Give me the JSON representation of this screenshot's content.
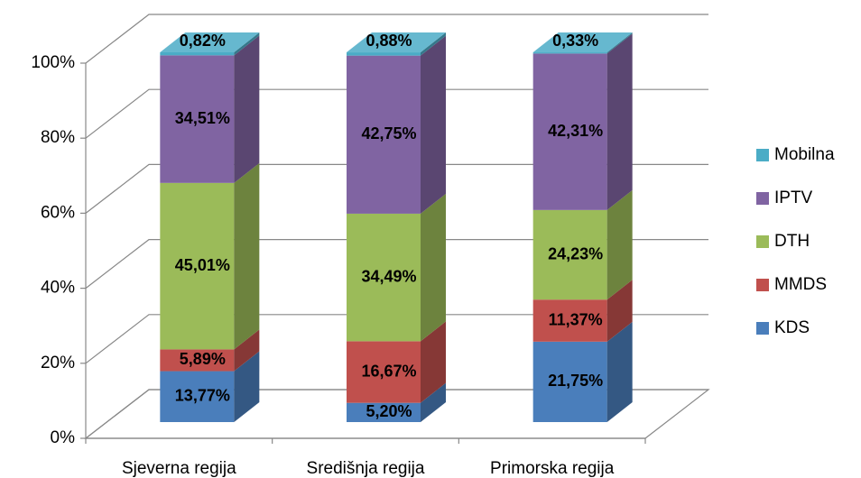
{
  "chart_data": {
    "type": "bar3d_stacked",
    "categories": [
      "Sjeverna regija",
      "Središnja regija",
      "Primorska regija"
    ],
    "series": [
      {
        "name": "KDS",
        "color": "#4a7ebb",
        "values": [
          13.77,
          5.2,
          21.75
        ],
        "value_labels": [
          "13,77%",
          "5,20%",
          "21,75%"
        ]
      },
      {
        "name": "MMDS",
        "color": "#c0504d",
        "values": [
          5.89,
          16.67,
          11.37
        ],
        "value_labels": [
          "5,89%",
          "16,67%",
          "11,37%"
        ]
      },
      {
        "name": "DTH",
        "color": "#9bbb59",
        "values": [
          45.01,
          34.49,
          24.23
        ],
        "value_labels": [
          "45,01%",
          "34,49%",
          "24,23%"
        ]
      },
      {
        "name": "IPTV",
        "color": "#8064a2",
        "values": [
          34.51,
          42.75,
          42.31
        ],
        "value_labels": [
          "34,51%",
          "42,75%",
          "42,31%"
        ]
      },
      {
        "name": "Mobilna",
        "color": "#4bacc6",
        "values": [
          0.82,
          0.88,
          0.33
        ],
        "value_labels": [
          "0,82%",
          "0,88%",
          "0,33%"
        ]
      }
    ],
    "ylim": [
      0,
      100
    ],
    "yticks": [
      {
        "value": 0,
        "label": "0%"
      },
      {
        "value": 20,
        "label": "20%"
      },
      {
        "value": 40,
        "label": "40%"
      },
      {
        "value": 60,
        "label": "60%"
      },
      {
        "value": 80,
        "label": "80%"
      },
      {
        "value": 100,
        "label": "100%"
      }
    ],
    "grid": true,
    "legend": "right"
  }
}
